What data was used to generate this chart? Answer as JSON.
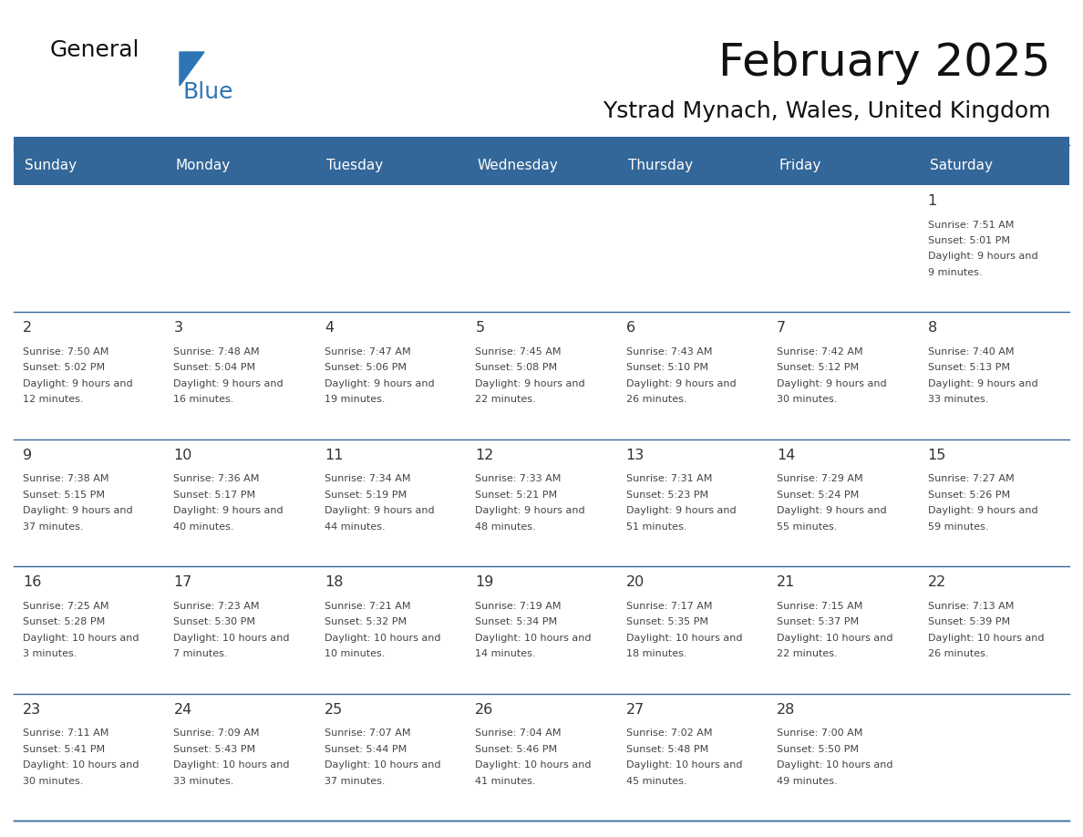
{
  "title": "February 2025",
  "subtitle": "Ystrad Mynach, Wales, United Kingdom",
  "days_of_week": [
    "Sunday",
    "Monday",
    "Tuesday",
    "Wednesday",
    "Thursday",
    "Friday",
    "Saturday"
  ],
  "header_bg": "#336699",
  "header_text_color": "#FFFFFF",
  "cell_bg": "#FFFFFF",
  "cell_bg_alt": "#F5F5F5",
  "border_color": "#336699",
  "day_number_color": "#333333",
  "text_color": "#444444",
  "title_color": "#111111",
  "subtitle_color": "#111111",
  "logo_text_color": "#111111",
  "logo_blue_color": "#2E75B6",
  "separator_color": "#336699",
  "calendar": [
    [
      null,
      null,
      null,
      null,
      null,
      null,
      {
        "day": 1,
        "sunrise": "7:51 AM",
        "sunset": "5:01 PM",
        "daylight": "9 hours and 9 minutes"
      }
    ],
    [
      {
        "day": 2,
        "sunrise": "7:50 AM",
        "sunset": "5:02 PM",
        "daylight": "9 hours and 12 minutes"
      },
      {
        "day": 3,
        "sunrise": "7:48 AM",
        "sunset": "5:04 PM",
        "daylight": "9 hours and 16 minutes"
      },
      {
        "day": 4,
        "sunrise": "7:47 AM",
        "sunset": "5:06 PM",
        "daylight": "9 hours and 19 minutes"
      },
      {
        "day": 5,
        "sunrise": "7:45 AM",
        "sunset": "5:08 PM",
        "daylight": "9 hours and 22 minutes"
      },
      {
        "day": 6,
        "sunrise": "7:43 AM",
        "sunset": "5:10 PM",
        "daylight": "9 hours and 26 minutes"
      },
      {
        "day": 7,
        "sunrise": "7:42 AM",
        "sunset": "5:12 PM",
        "daylight": "9 hours and 30 minutes"
      },
      {
        "day": 8,
        "sunrise": "7:40 AM",
        "sunset": "5:13 PM",
        "daylight": "9 hours and 33 minutes"
      }
    ],
    [
      {
        "day": 9,
        "sunrise": "7:38 AM",
        "sunset": "5:15 PM",
        "daylight": "9 hours and 37 minutes"
      },
      {
        "day": 10,
        "sunrise": "7:36 AM",
        "sunset": "5:17 PM",
        "daylight": "9 hours and 40 minutes"
      },
      {
        "day": 11,
        "sunrise": "7:34 AM",
        "sunset": "5:19 PM",
        "daylight": "9 hours and 44 minutes"
      },
      {
        "day": 12,
        "sunrise": "7:33 AM",
        "sunset": "5:21 PM",
        "daylight": "9 hours and 48 minutes"
      },
      {
        "day": 13,
        "sunrise": "7:31 AM",
        "sunset": "5:23 PM",
        "daylight": "9 hours and 51 minutes"
      },
      {
        "day": 14,
        "sunrise": "7:29 AM",
        "sunset": "5:24 PM",
        "daylight": "9 hours and 55 minutes"
      },
      {
        "day": 15,
        "sunrise": "7:27 AM",
        "sunset": "5:26 PM",
        "daylight": "9 hours and 59 minutes"
      }
    ],
    [
      {
        "day": 16,
        "sunrise": "7:25 AM",
        "sunset": "5:28 PM",
        "daylight": "10 hours and 3 minutes"
      },
      {
        "day": 17,
        "sunrise": "7:23 AM",
        "sunset": "5:30 PM",
        "daylight": "10 hours and 7 minutes"
      },
      {
        "day": 18,
        "sunrise": "7:21 AM",
        "sunset": "5:32 PM",
        "daylight": "10 hours and 10 minutes"
      },
      {
        "day": 19,
        "sunrise": "7:19 AM",
        "sunset": "5:34 PM",
        "daylight": "10 hours and 14 minutes"
      },
      {
        "day": 20,
        "sunrise": "7:17 AM",
        "sunset": "5:35 PM",
        "daylight": "10 hours and 18 minutes"
      },
      {
        "day": 21,
        "sunrise": "7:15 AM",
        "sunset": "5:37 PM",
        "daylight": "10 hours and 22 minutes"
      },
      {
        "day": 22,
        "sunrise": "7:13 AM",
        "sunset": "5:39 PM",
        "daylight": "10 hours and 26 minutes"
      }
    ],
    [
      {
        "day": 23,
        "sunrise": "7:11 AM",
        "sunset": "5:41 PM",
        "daylight": "10 hours and 30 minutes"
      },
      {
        "day": 24,
        "sunrise": "7:09 AM",
        "sunset": "5:43 PM",
        "daylight": "10 hours and 33 minutes"
      },
      {
        "day": 25,
        "sunrise": "7:07 AM",
        "sunset": "5:44 PM",
        "daylight": "10 hours and 37 minutes"
      },
      {
        "day": 26,
        "sunrise": "7:04 AM",
        "sunset": "5:46 PM",
        "daylight": "10 hours and 41 minutes"
      },
      {
        "day": 27,
        "sunrise": "7:02 AM",
        "sunset": "5:48 PM",
        "daylight": "10 hours and 45 minutes"
      },
      {
        "day": 28,
        "sunrise": "7:00 AM",
        "sunset": "5:50 PM",
        "daylight": "10 hours and 49 minutes"
      },
      null
    ]
  ]
}
